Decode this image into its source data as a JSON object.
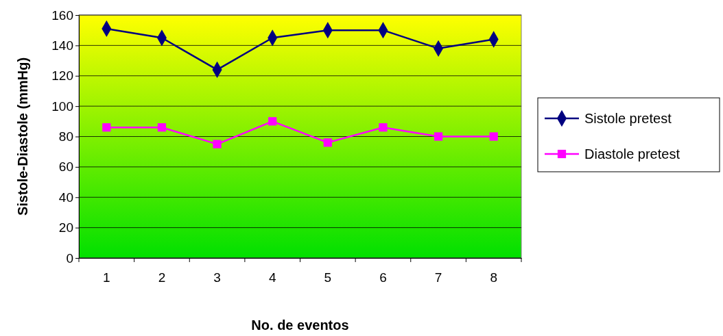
{
  "chart_data": {
    "type": "line",
    "xlabel": "No. de eventos",
    "ylabel": "Sistole-Diastole (mmHg)",
    "categories": [
      "1",
      "2",
      "3",
      "4",
      "5",
      "6",
      "7",
      "8"
    ],
    "series": [
      {
        "name": "Sistole pretest",
        "color": "#000080",
        "marker": "diamond",
        "values": [
          151,
          145,
          124,
          145,
          150,
          150,
          138,
          144
        ]
      },
      {
        "name": "Diastole pretest",
        "color": "#ff00ff",
        "marker": "square",
        "values": [
          86,
          86,
          75,
          90,
          76,
          86,
          80,
          80
        ]
      }
    ],
    "ylim": [
      0,
      160
    ],
    "yticks": [
      0,
      20,
      40,
      60,
      80,
      100,
      120,
      140,
      160
    ],
    "grid": "y",
    "legend": "right",
    "line_style": "solid"
  }
}
